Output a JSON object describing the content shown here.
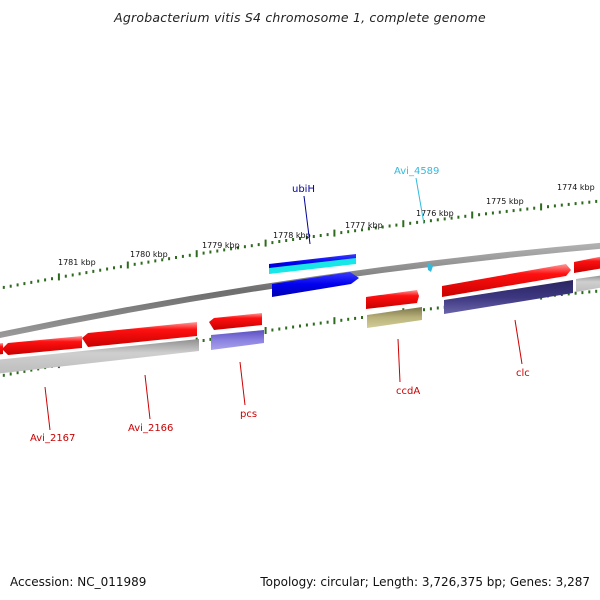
{
  "title": "Agrobacterium vitis S4 chromosome 1, complete genome",
  "footer": {
    "accession": "Accession: NC_011989",
    "topology": "Topology: circular; Length: 3,726,375 bp; Genes: 3,287"
  },
  "kbp_labels": [
    "1781 kbp",
    "1780 kbp",
    "1779 kbp",
    "1778 kbp",
    "1777 kbp",
    "1776 kbp",
    "1775 kbp",
    "1774 kbp"
  ],
  "genes": {
    "ubiH": "ubiH",
    "avi4589": "Avi_4589",
    "ccdA": "ccdA",
    "clc": "clc",
    "pcs": "pcs",
    "avi2166": "Avi_2166",
    "avi2167": "Avi_2167"
  },
  "colors": {
    "cds_forward": "#ff0000",
    "cds_reverse": "#dd0000",
    "gene_gray": "#bdbdbd",
    "ubiH_blue": "#0000ee",
    "ubiH_cyan": "#00dddd",
    "purple": "#7a6fd8",
    "dark_purple": "#3c3680",
    "olive": "#b9b27a",
    "label_red": "#cc0000",
    "label_navy": "#000099",
    "label_cyan": "#33bbdd",
    "tick_green": "#2d6b1f"
  }
}
